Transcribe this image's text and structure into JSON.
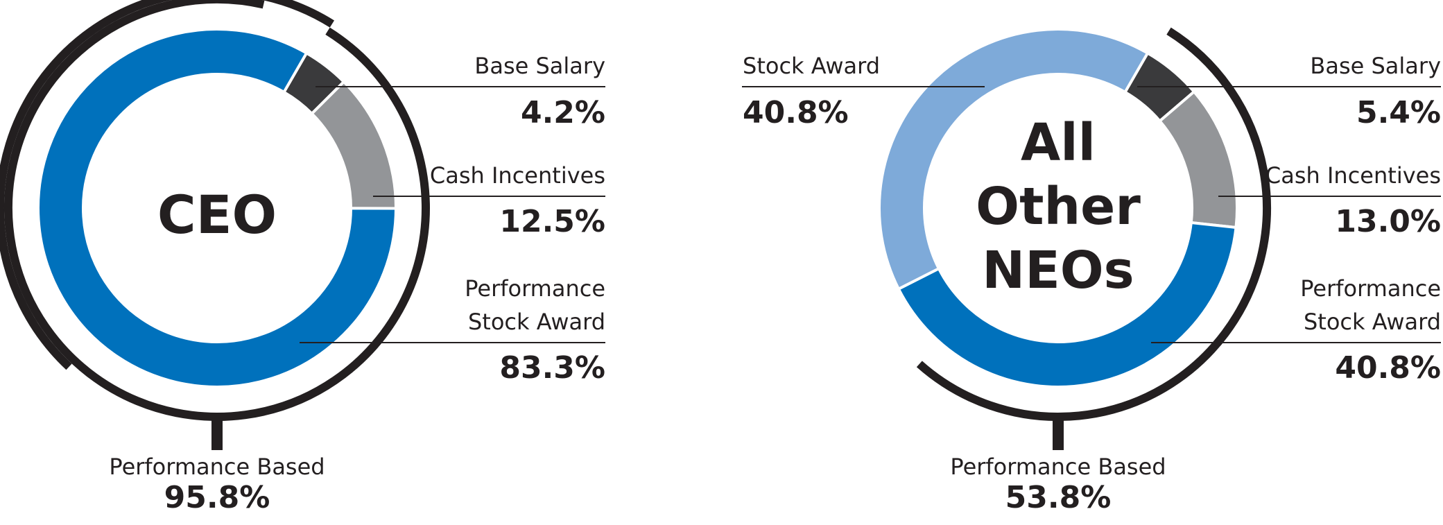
{
  "chart_data": [
    {
      "type": "pie",
      "variant": "donut",
      "center_label": "CEO",
      "segments": [
        {
          "label": "Base Salary",
          "value": 4.2,
          "value_text": "4.2%",
          "color": "#3a3a3c"
        },
        {
          "label": "Cash Incentives",
          "value": 12.5,
          "value_text": "12.5%",
          "color": "#939598"
        },
        {
          "label": "Performance Stock Award",
          "value": 83.3,
          "value_text": "83.3%",
          "color": "#0071bc"
        }
      ],
      "bracket": {
        "label": "Performance Based",
        "value": 95.8,
        "value_text": "95.8%"
      }
    },
    {
      "type": "pie",
      "variant": "donut",
      "center_label": "All Other NEOs",
      "segments": [
        {
          "label": "Base Salary",
          "value": 5.4,
          "value_text": "5.4%",
          "color": "#3a3a3c"
        },
        {
          "label": "Cash Incentives",
          "value": 13.0,
          "value_text": "13.0%",
          "color": "#939598"
        },
        {
          "label": "Performance Stock Award",
          "value": 40.8,
          "value_text": "40.8%",
          "color": "#0071bc"
        },
        {
          "label": "Stock Award",
          "value": 40.8,
          "value_text": "40.8%",
          "color": "#7eaad9"
        }
      ],
      "bracket": {
        "label": "Performance Based",
        "value": 53.8,
        "value_text": "53.8%"
      }
    }
  ],
  "labels": {
    "ceo": {
      "center_title": "CEO",
      "base_salary": "Base Salary",
      "base_salary_value": "4.2%",
      "cash_incentives": "Cash Incentives",
      "cash_incentives_value": "12.5%",
      "psa_line1": "Performance",
      "psa_line2": "Stock Award",
      "psa_value": "83.3%",
      "perf_based": "Performance Based",
      "perf_based_value": "95.8%"
    },
    "neo": {
      "center_line1": "All",
      "center_line2": "Other",
      "center_line3": "NEOs",
      "stock_award": "Stock Award",
      "stock_award_value": "40.8%",
      "base_salary": "Base Salary",
      "base_salary_value": "5.4%",
      "cash_incentives": "Cash Incentives",
      "cash_incentives_value": "13.0%",
      "psa_line1": "Performance",
      "psa_line2": "Stock Award",
      "psa_value": "40.8%",
      "perf_based": "Performance Based",
      "perf_based_value": "53.8%"
    }
  },
  "colors": {
    "base_salary": "#3a3a3c",
    "cash_incentives": "#939598",
    "performance_stock_award": "#0071bc",
    "stock_award": "#7eaad9",
    "bracket": "#231f20"
  }
}
